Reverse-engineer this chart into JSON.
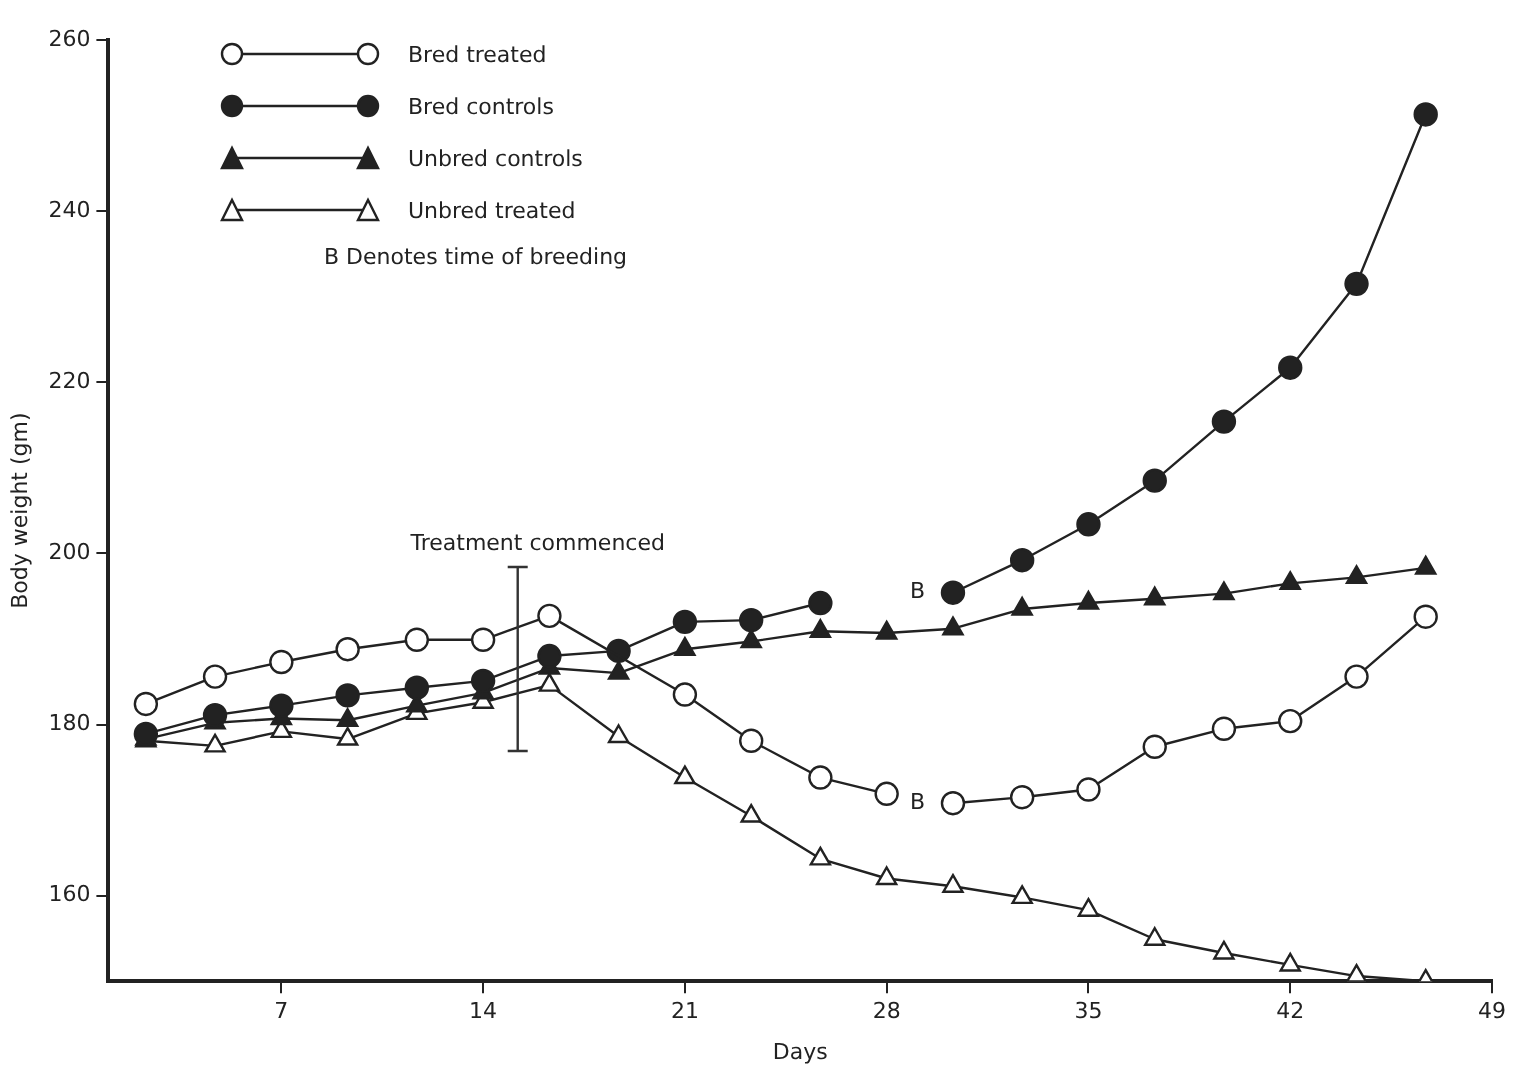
{
  "chart_data": {
    "type": "line",
    "xlabel": "Days",
    "ylabel": "Body weight (gm)",
    "x": [
      2.3,
      4.7,
      7,
      9.3,
      11.7,
      14,
      16.3,
      18.7,
      21,
      23.3,
      25.7,
      28,
      30.3,
      32.7,
      35,
      37.3,
      39.7,
      42,
      44.3,
      46.7
    ],
    "series": [
      {
        "name": "Bred treated",
        "color": "#222222",
        "colors": [
          "#ffffff",
          "#ffffff",
          "#ffffff",
          "#ffffff",
          "#ffffff",
          "#ffffff",
          "#ffffff",
          "#ffffff",
          "#ffffff",
          "#ffffff",
          "#ffffff",
          "#ffffff",
          "#ffffff",
          "#ffffff",
          "#ffffff",
          "#ffffff",
          "#ffffff",
          "#ffffff",
          "#ffffff",
          "#ffffff"
        ],
        "marker": "circle",
        "x": [
          2.3,
          4.7,
          7,
          9.3,
          11.7,
          14,
          16.3,
          21,
          23.3,
          25.7,
          28,
          29.2,
          30.3,
          32.7,
          35,
          37.3,
          39.7,
          42,
          44.3,
          46.7
        ],
        "values": [
          182.4,
          185.6,
          187.3,
          188.8,
          189.9,
          189.9,
          192.7,
          183.5,
          178.1,
          173.8,
          171.9,
          null,
          170.8,
          171.5,
          172.4,
          177.4,
          179.5,
          180.4,
          185.6,
          192.6
        ]
      },
      {
        "name": "Bred controls",
        "color": "#222222",
        "marker": "circle",
        "values": [
          178.9,
          181.1,
          182.2,
          183.4,
          184.3,
          185.1,
          188.0,
          188.6,
          192.0,
          192.2,
          194.2,
          null,
          195.4,
          199.2,
          203.4,
          208.5,
          215.4,
          221.7,
          231.5,
          251.3
        ]
      },
      {
        "name": "Unbred controls",
        "color": "#222222",
        "marker": "triangle",
        "values": [
          178.3,
          180.2,
          180.7,
          180.5,
          182.2,
          183.7,
          186.6,
          186.0,
          188.8,
          189.7,
          190.9,
          190.7,
          191.2,
          193.5,
          194.2,
          194.7,
          195.3,
          196.5,
          197.2,
          198.3
        ]
      },
      {
        "name": "Unbred treated",
        "color": "#222222",
        "colors": [
          "#ffffff",
          "#ffffff",
          "#ffffff",
          "#ffffff",
          "#ffffff",
          "#ffffff",
          "#ffffff",
          "#ffffff",
          "#ffffff",
          "#ffffff",
          "#ffffff",
          "#ffffff",
          "#ffffff",
          "#ffffff",
          "#ffffff",
          "#ffffff",
          "#ffffff",
          "#ffffff",
          "#ffffff",
          "#ffffff"
        ],
        "marker": "triangle",
        "values": [
          178.1,
          177.5,
          179.2,
          178.3,
          181.3,
          182.6,
          184.6,
          178.6,
          173.8,
          169.3,
          164.3,
          162.0,
          161.1,
          159.8,
          158.3,
          154.9,
          153.3,
          151.9,
          150.6,
          150
        ]
      }
    ],
    "xlim": [
      1,
      49
    ],
    "xticks": [
      7,
      14,
      21,
      28,
      35,
      42,
      49
    ],
    "ylim": [
      150,
      260
    ],
    "yticks": [
      160,
      180,
      200,
      220,
      240,
      260
    ],
    "grid": false,
    "legend": "top left",
    "line_style": "solid",
    "ref_lines": [
      {
        "axis": "x",
        "value": 15.2,
        "label": "Treatment commenced"
      }
    ],
    "annotations": [
      {
        "text": "B",
        "x": 30.3,
        "y": 195.4
      },
      {
        "text": "B",
        "x": 30.3,
        "y": 170.8
      },
      "B Denotes time of breeding"
    ]
  }
}
